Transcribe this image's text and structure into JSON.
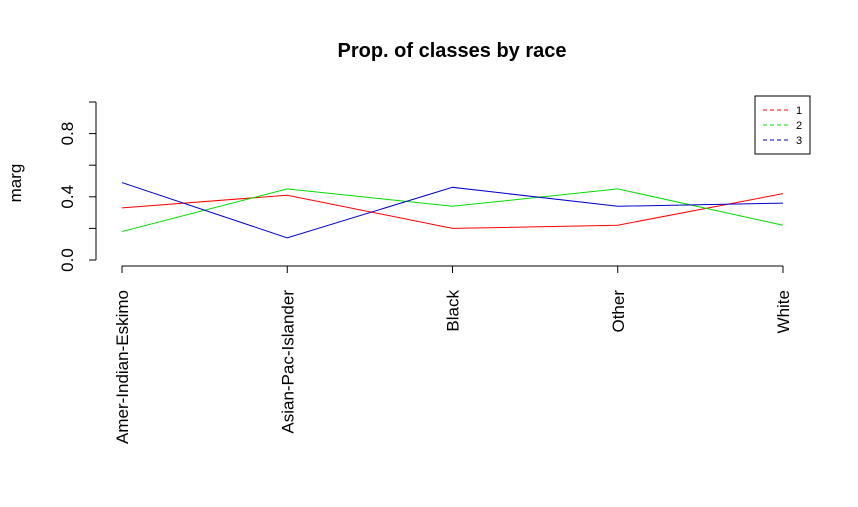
{
  "chart_data": {
    "type": "line",
    "title": "Prop. of classes by race",
    "xlabel": "",
    "ylabel": "marg",
    "categories": [
      "Amer-Indian-Eskimo",
      "Asian-Pac-Islander",
      "Black",
      "Other",
      "White"
    ],
    "ylim": [
      0,
      1
    ],
    "yticks": [
      "0.0",
      "0.4",
      "0.8"
    ],
    "series": [
      {
        "name": "1",
        "color": "#ff0000",
        "values": [
          0.33,
          0.41,
          0.2,
          0.22,
          0.42
        ]
      },
      {
        "name": "2",
        "color": "#00dd00",
        "values": [
          0.18,
          0.45,
          0.34,
          0.45,
          0.22
        ]
      },
      {
        "name": "3",
        "color": "#0000cc",
        "values": [
          0.49,
          0.14,
          0.46,
          0.34,
          0.36
        ]
      }
    ],
    "legend": {
      "position": "top-right",
      "line_style": "dashed"
    },
    "grid": false
  }
}
